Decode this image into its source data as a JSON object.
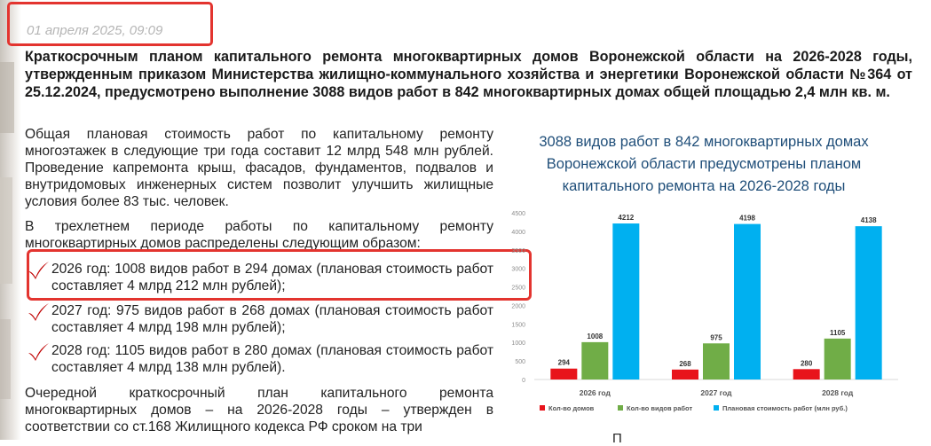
{
  "date": "01 апреля 2025, 09:09",
  "lead": "Краткосрочным планом капитального ремонта многоквартирных домов Воронежской области на 2026-2028 годы, утвержденным приказом Министерства жилищно-коммунального хозяйства и энергетики Воронежской области №364 от 25.12.2024, предусмотрено выполнение 3088 видов работ в 842 многоквартирных домах общей площадью 2,4 млн кв. м.",
  "paragraph1": "Общая плановая стоимость работ по капитальному ремонту многоэтажек в следующие три года составит 12 млрд 548 млн рублей. Проведение капремонта крыш, фасадов, фундаментов, подвалов и внутридомовых инженерных систем позволит улучшить жилищные условия более 83 тыс. человек.",
  "paragraph2": "В трехлетнем периоде работы по капитальному ремонту многоквартирных домов распределены следующим образом:",
  "list": [
    "2026 год: 1008 видов работ в 294 домах (плановая стоимость работ составляет 4 млрд 212 млн рублей);",
    "2027 год: 975 видов работ в 268 домах (плановая стоимость работ составляет 4 млрд 198 млн рублей);",
    "2028 год: 1105 видов работ в 280 домах (плановая стоимость работ составляет 4 млрд 138 млн рублей)."
  ],
  "paragraph3": "Очередной краткосрочный план капитального ремонта многоквартирных домов – на 2026-2028 годы – утвержден в соответствии со ст.168 Жилищного кодекса РФ сроком на три",
  "trailing_fragment": "П",
  "chart_title": "3088 видов работ в 842 многоквартирных домах Воронежской области предусмотрены планом капитального ремонта на 2026-2028 годы",
  "colors": {
    "houses": "#e8141b",
    "works": "#70ad47",
    "cost": "#00b0f0",
    "accent": "#e3342f"
  },
  "chart_data": {
    "type": "bar",
    "title": "3088 видов работ в 842 многоквартирных домах Воронежской области предусмотрены планом капитального ремонта на 2026-2028 годы",
    "categories": [
      "2026 год",
      "2027 год",
      "2028 год"
    ],
    "series": [
      {
        "name": "Кол-во домов",
        "values": [
          294,
          268,
          280
        ]
      },
      {
        "name": "Кол-во видов работ",
        "values": [
          1008,
          975,
          1105
        ]
      },
      {
        "name": "Плановая стоимость работ (млн руб.)",
        "values": [
          4212,
          4198,
          4138
        ]
      }
    ],
    "ylim": [
      0,
      4500
    ],
    "yticks": [
      "0",
      "500",
      "1000",
      "1500",
      "2000",
      "2500",
      "3000",
      "3500",
      "4000",
      "4500"
    ],
    "grid": false,
    "legend": "bottom"
  }
}
